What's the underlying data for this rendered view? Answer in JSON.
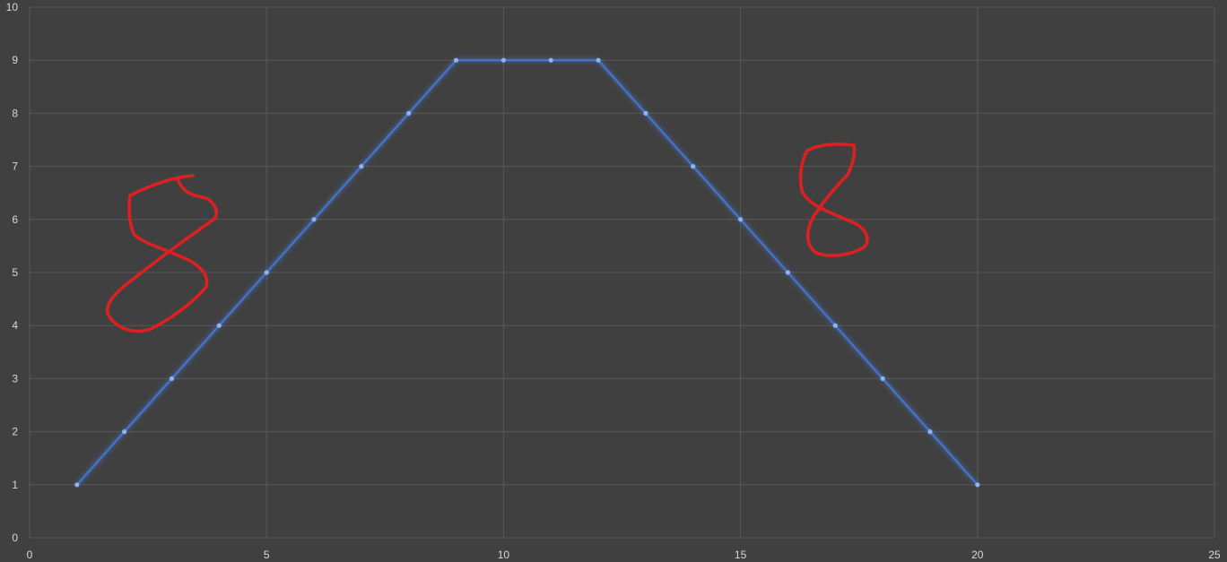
{
  "chart_data": {
    "type": "line",
    "title": "",
    "xlabel": "",
    "ylabel": "",
    "xlim": [
      0,
      25
    ],
    "ylim": [
      0,
      10
    ],
    "x_ticks": [
      "0",
      "5",
      "10",
      "15",
      "20",
      "25"
    ],
    "y_ticks": [
      "0",
      "1",
      "2",
      "3",
      "4",
      "5",
      "6",
      "7",
      "8",
      "9",
      "10"
    ],
    "grid": true,
    "legend": "none",
    "series": [
      {
        "x": [
          1,
          2,
          3,
          4,
          5,
          6,
          7,
          8,
          9,
          10,
          11,
          12,
          13,
          14,
          15,
          16,
          17,
          18,
          19,
          20
        ],
        "y": [
          1,
          2,
          3,
          4,
          5,
          6,
          7,
          8,
          9,
          9,
          9,
          9,
          8,
          7,
          6,
          5,
          4,
          3,
          2,
          1
        ]
      }
    ],
    "annotations": [
      {
        "text": "8",
        "style": "handwritten",
        "color": "#e02020",
        "near_x": 4,
        "near_y": 5.5
      },
      {
        "text": "8",
        "style": "handwritten",
        "color": "#e02020",
        "near_x": 17,
        "near_y": 6.5
      }
    ]
  },
  "colors": {
    "background": "#404040",
    "grid": "#595959",
    "tick_text": "#d9d9d9",
    "series": "#4472c4",
    "marker": "#8fb3ef",
    "annotation": "#e02020"
  }
}
